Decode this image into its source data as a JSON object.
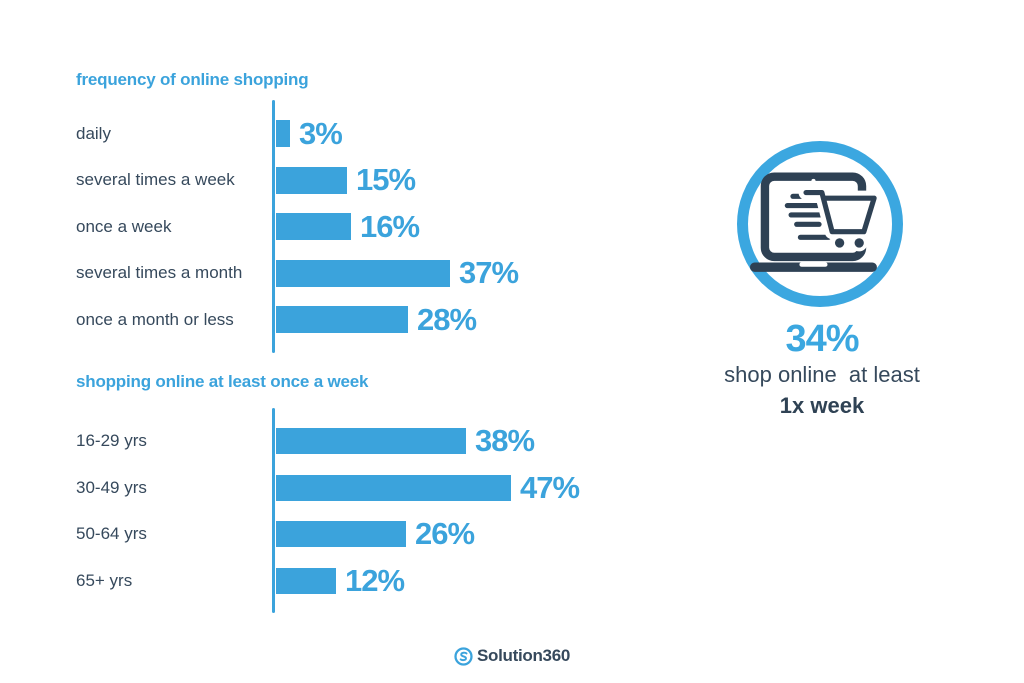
{
  "colors": {
    "accent_blue": "#3BA3DC",
    "ring_blue": "#3BA7E0",
    "dark_navy": "#36495C",
    "icon_navy": "#2E4154",
    "background": "#ffffff"
  },
  "chart_data": [
    {
      "type": "bar",
      "orientation": "horizontal",
      "title": "frequency of online shopping",
      "categories": [
        "daily",
        "several times a week",
        "once a week",
        "several times a month",
        "once a month or less"
      ],
      "values": [
        3,
        15,
        16,
        37,
        28
      ],
      "value_labels": [
        "3%",
        "15%",
        "16%",
        "37%",
        "28%"
      ],
      "unit": "percent",
      "xlim": [
        0,
        50
      ],
      "grid": false,
      "legend": "none",
      "bar_color": "#3BA3DC"
    },
    {
      "type": "bar",
      "orientation": "horizontal",
      "title": "shopping online at least once a week",
      "categories": [
        "16-29 yrs",
        "30-49 yrs",
        "50-64 yrs",
        "65+ yrs"
      ],
      "values": [
        38,
        47,
        26,
        12
      ],
      "value_labels": [
        "38%",
        "47%",
        "26%",
        "12%"
      ],
      "unit": "percent",
      "xlim": [
        0,
        50
      ],
      "grid": false,
      "legend": "none",
      "bar_color": "#3BA3DC"
    }
  ],
  "highlight": {
    "icon": "laptop-with-shopping-cart-icon",
    "value": "34%",
    "line1": "shop online  at least",
    "line2": "1x week"
  },
  "footer": {
    "logo_icon": "solution360-s-icon",
    "logo_text": "Solution360"
  }
}
